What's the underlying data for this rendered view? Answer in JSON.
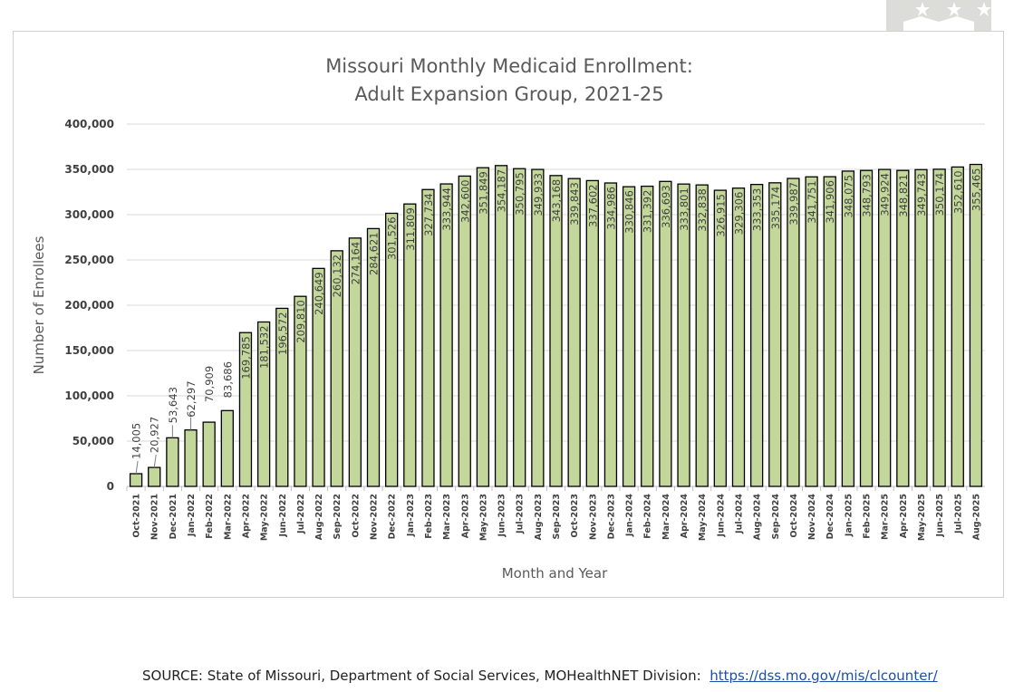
{
  "chart_data": {
    "type": "bar",
    "title": [
      "Missouri Monthly Medicaid Enrollment:",
      "Adult Expansion Group, 2021-25"
    ],
    "xlabel": "Month and Year",
    "ylabel": "Number of Enrollees",
    "ylim": [
      0,
      400000
    ],
    "yticks": [
      0,
      50000,
      100000,
      150000,
      200000,
      250000,
      300000,
      350000,
      400000
    ],
    "ytick_labels": [
      "0",
      "50,000",
      "100,000",
      "150,000",
      "200,000",
      "250,000",
      "300,000",
      "350,000",
      "400,000"
    ],
    "grid": true,
    "bar_color": "#c4d79b",
    "categories": [
      "Oct-2021",
      "Nov-2021",
      "Dec-2021",
      "Jan-2022",
      "Feb-2022",
      "Mar-2022",
      "Apr-2022",
      "May-2022",
      "Jun-2022",
      "Jul-2022",
      "Aug-2022",
      "Sep-2022",
      "Oct-2022",
      "Nov-2022",
      "Dec-2022",
      "Jan-2023",
      "Feb-2023",
      "Mar-2023",
      "Apr-2023",
      "May-2023",
      "Jun-2023",
      "Jul-2023",
      "Aug-2023",
      "Sep-2023",
      "Oct-2023",
      "Nov-2023",
      "Dec-2023",
      "Jan-2024",
      "Feb-2024",
      "Mar-2024",
      "Apr-2024",
      "May-2024",
      "Jun-2024",
      "Jul-2024",
      "Aug-2024",
      "Sep-2024",
      "Oct-2024",
      "Nov-2024",
      "Dec-2024",
      "Jan-2025",
      "Feb-2025",
      "Mar-2025",
      "Apr-2025",
      "May-2025",
      "Jun-2025",
      "Jul-2025",
      "Aug-2025"
    ],
    "values": [
      14005,
      20927,
      53643,
      62297,
      70909,
      83686,
      169785,
      181532,
      196572,
      209810,
      240649,
      260132,
      274164,
      284621,
      301526,
      311809,
      327734,
      333944,
      342600,
      351849,
      354187,
      350795,
      349933,
      343168,
      339843,
      337602,
      334986,
      330846,
      331392,
      336693,
      333801,
      332838,
      326915,
      329306,
      333353,
      335174,
      339987,
      341751,
      341906,
      348075,
      348793,
      349924,
      348821,
      349743,
      350174,
      352610,
      355465
    ],
    "value_labels": [
      "14,005",
      "20,927",
      "53,643",
      "62,297",
      "70,909",
      "83,686",
      "169,785",
      "181,532",
      "196,572",
      "209,810",
      "240,649",
      "260,132",
      "274,164",
      "284,621",
      "301,526",
      "311,809",
      "327,734",
      "333,944",
      "342,600",
      "351,849",
      "354,187",
      "350,795",
      "349,933",
      "343,168",
      "339,843",
      "337,602",
      "334,986",
      "330,846",
      "331,392",
      "336,693",
      "333,801",
      "332,838",
      "326,915",
      "329,306",
      "333,353",
      "335,174",
      "339,987",
      "341,751",
      "341,906",
      "348,075",
      "348,793",
      "349,924",
      "348,821",
      "349,743",
      "350,174",
      "352,610",
      "355,465"
    ]
  },
  "source": {
    "text": "SOURCE: State of Missouri, Department of Social Services, MOHealthNET Division:",
    "link": "https://dss.mo.gov/mis/clcounter/"
  }
}
